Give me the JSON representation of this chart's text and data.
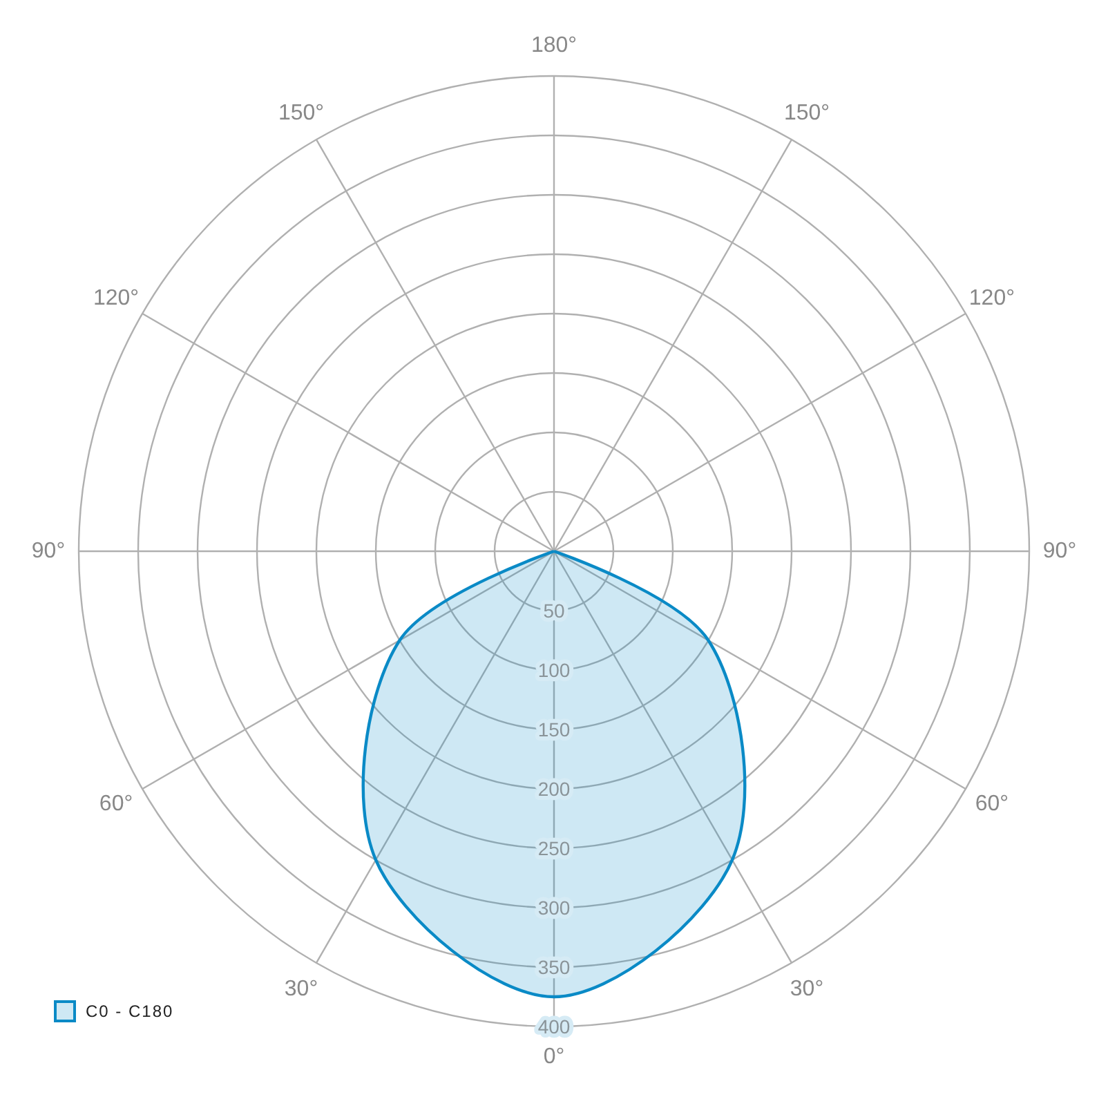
{
  "chart_data": {
    "type": "radar",
    "categories": [
      "180°",
      "150°",
      "120°",
      "90°",
      "60°",
      "30°",
      "0°",
      "30°",
      "60°",
      "90°",
      "120°",
      "150°"
    ],
    "series": [
      {
        "name": "C0 - C180",
        "color": "#0a8ac6",
        "values": [
          0,
          0,
          0,
          0,
          150,
          300,
          375,
          300,
          150,
          0,
          0,
          0
        ]
      }
    ],
    "ylim": [
      0,
      400
    ],
    "yticks": [
      50,
      100,
      150,
      200,
      250,
      300,
      350,
      400
    ],
    "grid": true,
    "legend": "bottom left"
  }
}
